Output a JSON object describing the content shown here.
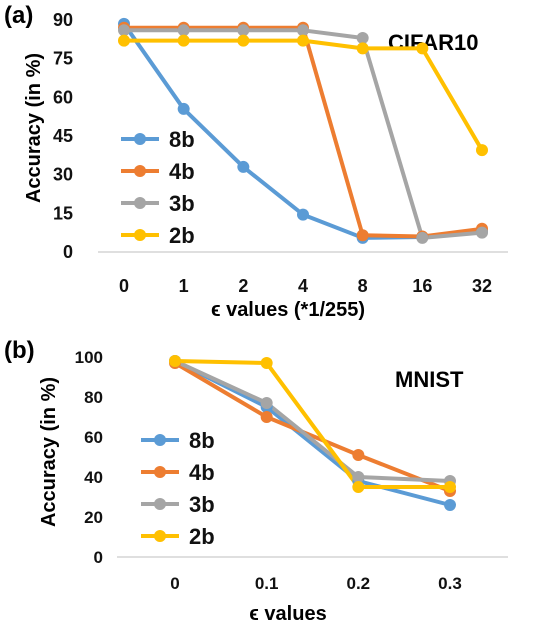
{
  "chart_data": [
    {
      "type": "line",
      "panel_label": "(a)",
      "title": "CIFAR10",
      "xlabel": "ϵ  values (*1/255)",
      "ylabel": "Accuracy (in %)",
      "categories": [
        "0",
        "1",
        "2",
        "4",
        "8",
        "16",
        "32"
      ],
      "yticks": [
        "0",
        "15",
        "30",
        "45",
        "60",
        "75",
        "90"
      ],
      "ylim": [
        0,
        90
      ],
      "grid": false,
      "legend_position": "left-bottom",
      "series": [
        {
          "name": "8b",
          "color": "#5B9BD5",
          "values": [
            88.5,
            55.5,
            33,
            14.5,
            5.5,
            5.8,
            8.0
          ]
        },
        {
          "name": "4b",
          "color": "#ED7D31",
          "values": [
            87,
            87,
            87,
            87,
            6.5,
            6.0,
            9.0
          ]
        },
        {
          "name": "3b",
          "color": "#A5A5A5",
          "values": [
            86,
            86,
            86,
            86,
            83,
            5.5,
            7.5
          ]
        },
        {
          "name": "2b",
          "color": "#FFC000",
          "values": [
            82,
            82,
            82,
            82,
            79,
            79,
            39.5
          ]
        }
      ]
    },
    {
      "type": "line",
      "panel_label": "(b)",
      "title": "MNIST",
      "xlabel": "ϵ values",
      "ylabel": "Accuracy (in %)",
      "categories": [
        "0",
        "0.1",
        "0.2",
        "0.3"
      ],
      "yticks": [
        "0",
        "20",
        "40",
        "60",
        "80",
        "100"
      ],
      "ylim": [
        0,
        100
      ],
      "grid": false,
      "legend_position": "left-bottom",
      "series": [
        {
          "name": "8b",
          "color": "#5B9BD5",
          "values": [
            98,
            75,
            38,
            26
          ]
        },
        {
          "name": "4b",
          "color": "#ED7D31",
          "values": [
            97,
            70,
            51,
            33
          ]
        },
        {
          "name": "3b",
          "color": "#A5A5A5",
          "values": [
            98,
            77,
            40,
            38
          ]
        },
        {
          "name": "2b",
          "color": "#FFC000",
          "values": [
            98,
            97,
            35,
            35
          ]
        }
      ]
    }
  ]
}
